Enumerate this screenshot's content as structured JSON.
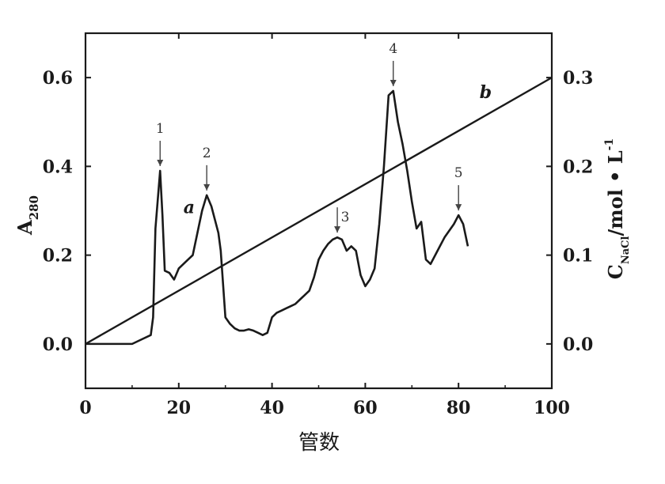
{
  "chart_data": {
    "type": "line",
    "xlabel": "管数",
    "ylabel_left": {
      "main": "A",
      "sub": "280"
    },
    "ylabel_right": {
      "main": "C",
      "sub": "NaCl",
      "unit": "/mol • L",
      "sup": "-1"
    },
    "xlim": [
      0,
      100
    ],
    "ylim_left": [
      -0.1,
      0.7
    ],
    "ylim_right": [
      -0.05,
      0.35
    ],
    "x_ticks": [
      "0",
      "20",
      "40",
      "60",
      "80",
      "100"
    ],
    "x_tick_values": [
      0,
      20,
      40,
      60,
      80,
      100
    ],
    "y_left_ticks": [
      "0.0",
      "0.2",
      "0.4",
      "0.6"
    ],
    "y_left_tick_values": [
      0.0,
      0.2,
      0.4,
      0.6
    ],
    "y_right_ticks": [
      "0.0",
      "0.1",
      "0.2",
      "0.3"
    ],
    "y_right_tick_values": [
      0.0,
      0.1,
      0.2,
      0.3
    ],
    "series": [
      {
        "name": "a",
        "axis": "left",
        "x": [
          0,
          10,
          12,
          14,
          14.5,
          15,
          16,
          16.5,
          17,
          18,
          19,
          20,
          21,
          22,
          23,
          24,
          25,
          26,
          27,
          28,
          28.5,
          29,
          30,
          31,
          32,
          33,
          34,
          35,
          36,
          37,
          38,
          39,
          40,
          41,
          42,
          43,
          44,
          45,
          46,
          47,
          48,
          49,
          50,
          51,
          52,
          53,
          54,
          55,
          56,
          57,
          58,
          59,
          60,
          61,
          62,
          63,
          64,
          65,
          66,
          67,
          68,
          69,
          70,
          71,
          72,
          73,
          74,
          75,
          76,
          77,
          78,
          79,
          80,
          81,
          82
        ],
        "y": [
          0.0,
          0.0,
          0.01,
          0.02,
          0.06,
          0.26,
          0.39,
          0.29,
          0.165,
          0.16,
          0.145,
          0.17,
          0.18,
          0.19,
          0.2,
          0.25,
          0.3,
          0.335,
          0.31,
          0.27,
          0.25,
          0.21,
          0.06,
          0.045,
          0.035,
          0.03,
          0.03,
          0.033,
          0.03,
          0.025,
          0.02,
          0.025,
          0.06,
          0.07,
          0.075,
          0.08,
          0.085,
          0.09,
          0.1,
          0.11,
          0.12,
          0.15,
          0.19,
          0.21,
          0.225,
          0.235,
          0.24,
          0.235,
          0.21,
          0.22,
          0.21,
          0.155,
          0.13,
          0.145,
          0.17,
          0.27,
          0.4,
          0.56,
          0.57,
          0.5,
          0.45,
          0.39,
          0.32,
          0.26,
          0.275,
          0.19,
          0.18,
          0.2,
          0.22,
          0.24,
          0.255,
          0.27,
          0.29,
          0.27,
          0.22
        ]
      },
      {
        "name": "b",
        "axis": "right",
        "x": [
          0,
          100
        ],
        "y": [
          0.0,
          0.3
        ]
      }
    ],
    "annotations": [
      {
        "label": "1",
        "x": 16
      },
      {
        "label": "2",
        "x": 26
      },
      {
        "label": "3",
        "x": 54
      },
      {
        "label": "4",
        "x": 66
      },
      {
        "label": "5",
        "x": 80
      }
    ]
  }
}
